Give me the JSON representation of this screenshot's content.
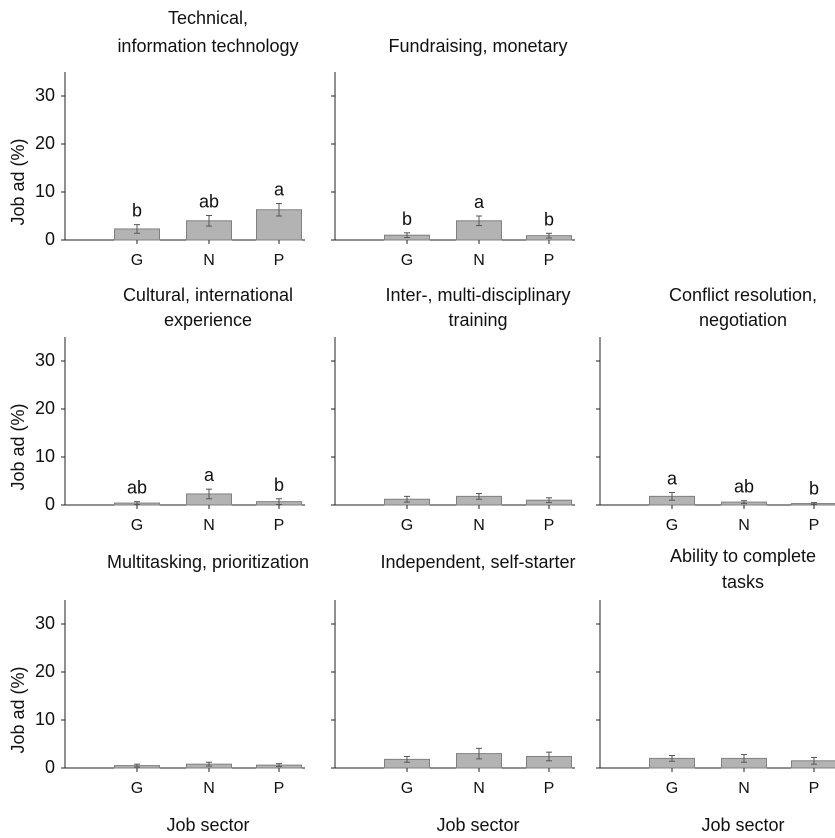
{
  "figure": {
    "ylabel": "Job ad (%)",
    "xlabel": "Job sector"
  },
  "chart_data": [
    {
      "type": "bar",
      "title": [
        "Technical,",
        "information technology"
      ],
      "categories": [
        "G",
        "N",
        "P"
      ],
      "values": [
        2.3,
        4.0,
        6.3
      ],
      "errors": [
        0.9,
        1.1,
        1.3
      ],
      "letters": [
        "b",
        "ab",
        "a"
      ],
      "ylim": [
        0,
        35
      ],
      "yticks": [
        0,
        10,
        20,
        30
      ],
      "show_yticks": true,
      "show_xlabel": false
    },
    {
      "type": "bar",
      "title": [
        "Fundraising, monetary"
      ],
      "categories": [
        "G",
        "N",
        "P"
      ],
      "values": [
        1.0,
        4.0,
        0.9
      ],
      "errors": [
        0.5,
        1.0,
        0.5
      ],
      "letters": [
        "b",
        "a",
        "b"
      ],
      "ylim": [
        0,
        35
      ],
      "yticks": [
        0,
        10,
        20,
        30
      ],
      "show_yticks": false,
      "show_xlabel": false
    },
    {
      "type": "bar",
      "title": [
        "Cultural, international",
        "experience"
      ],
      "categories": [
        "G",
        "N",
        "P"
      ],
      "values": [
        0.4,
        2.3,
        0.7
      ],
      "errors": [
        0.3,
        1.0,
        0.6
      ],
      "letters": [
        "ab",
        "a",
        "b"
      ],
      "ylim": [
        0,
        35
      ],
      "yticks": [
        0,
        10,
        20,
        30
      ],
      "show_yticks": true,
      "show_xlabel": false
    },
    {
      "type": "bar",
      "title": [
        "Inter-, multi-disciplinary",
        "training"
      ],
      "categories": [
        "G",
        "N",
        "P"
      ],
      "values": [
        1.2,
        1.8,
        1.0
      ],
      "errors": [
        0.6,
        0.6,
        0.5
      ],
      "letters": [],
      "ylim": [
        0,
        35
      ],
      "yticks": [
        0,
        10,
        20,
        30
      ],
      "show_yticks": false,
      "show_xlabel": false
    },
    {
      "type": "bar",
      "title": [
        "Conflict resolution,",
        "negotiation"
      ],
      "categories": [
        "G",
        "N",
        "P"
      ],
      "values": [
        1.8,
        0.6,
        0.3
      ],
      "errors": [
        0.8,
        0.3,
        0.2
      ],
      "letters": [
        "a",
        "ab",
        "b"
      ],
      "ylim": [
        0,
        35
      ],
      "yticks": [
        0,
        10,
        20,
        30
      ],
      "show_yticks": false,
      "show_xlabel": false
    },
    {
      "type": "bar",
      "title": [
        "Multitasking, prioritization"
      ],
      "categories": [
        "G",
        "N",
        "P"
      ],
      "values": [
        0.5,
        0.8,
        0.6
      ],
      "errors": [
        0.3,
        0.4,
        0.3
      ],
      "letters": [],
      "ylim": [
        0,
        35
      ],
      "yticks": [
        0,
        10,
        20,
        30
      ],
      "show_yticks": true,
      "show_xlabel": true
    },
    {
      "type": "bar",
      "title": [
        "Independent, self-starter"
      ],
      "categories": [
        "G",
        "N",
        "P"
      ],
      "values": [
        1.8,
        3.0,
        2.4
      ],
      "errors": [
        0.6,
        1.1,
        0.9
      ],
      "letters": [],
      "ylim": [
        0,
        35
      ],
      "yticks": [
        0,
        10,
        20,
        30
      ],
      "show_yticks": false,
      "show_xlabel": true
    },
    {
      "type": "bar",
      "title": [
        "Ability to complete",
        "tasks"
      ],
      "categories": [
        "G",
        "N",
        "P"
      ],
      "values": [
        2.0,
        2.0,
        1.5
      ],
      "errors": [
        0.6,
        0.8,
        0.7
      ],
      "letters": [],
      "ylim": [
        0,
        35
      ],
      "yticks": [
        0,
        10,
        20,
        30
      ],
      "show_yticks": false,
      "show_xlabel": true
    }
  ]
}
